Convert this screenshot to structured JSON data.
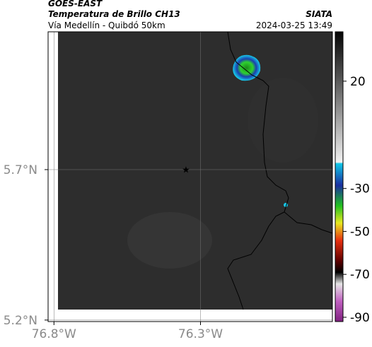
{
  "header": {
    "satellite": "GOES-EAST",
    "product": "Temperatura de Brillo CH13",
    "route": "Vía Medellín - Quibdó 50km",
    "source": "SIATA",
    "timestamp": "2024-03-25 13:49"
  },
  "map": {
    "xlim": [
      -76.82,
      -75.85
    ],
    "ylim": [
      5.195,
      6.158
    ],
    "xticks": [
      {
        "value": -76.8,
        "label": "76.8°W"
      },
      {
        "value": -76.3,
        "label": "76.3°W"
      }
    ],
    "yticks": [
      {
        "value": 5.7,
        "label": "5.7°N"
      },
      {
        "value": 5.2,
        "label": "5.2°N"
      }
    ],
    "grid": true
  },
  "colorbar": {
    "lim": [
      -92,
      43
    ],
    "ticks": [
      20,
      -30,
      -50,
      -70,
      -90
    ]
  }
}
